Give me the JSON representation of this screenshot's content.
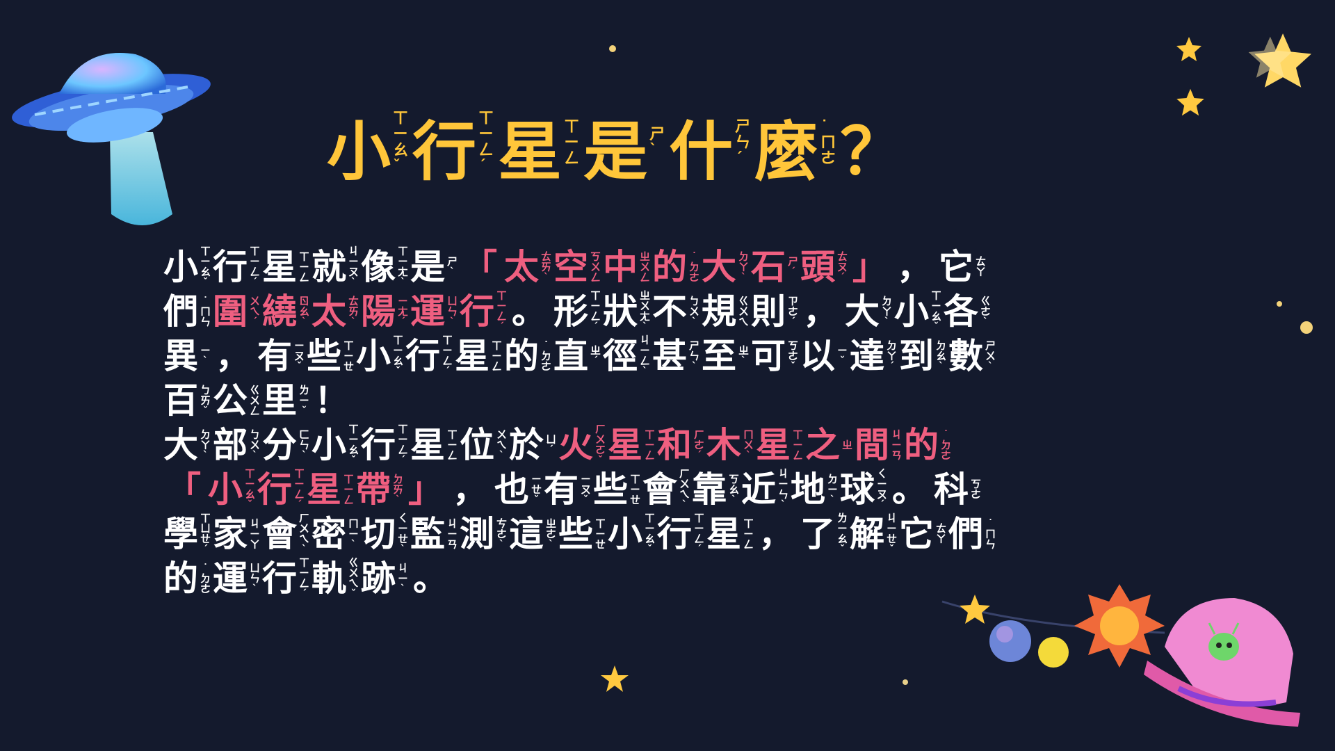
{
  "colors": {
    "background": "#141a2d",
    "title": "#ffc63a",
    "text": "#ffffff",
    "highlight": "#ef5f80",
    "star": "#ffc940"
  },
  "icons": {
    "ufo": "ufo-icon",
    "star_large": "star-icon",
    "rocket": "alien-spaceship-icon",
    "planets": "planet-chain-icon"
  },
  "title": [
    {
      "ch": "小",
      "zy": [
        "ㄒ",
        "ㄧ",
        "ㄠ",
        "ˇ"
      ]
    },
    {
      "ch": "行",
      "zy": [
        "ㄒ",
        "ㄧ",
        "ㄥ",
        "ˊ"
      ]
    },
    {
      "ch": "星",
      "zy": [
        "ㄒ",
        "ㄧ",
        "ㄥ"
      ]
    },
    {
      "ch": "是",
      "zy": [
        "ㄕ",
        "ˋ"
      ]
    },
    {
      "ch": "什",
      "zy": [
        "ㄕ",
        "ㄣ",
        "ˊ"
      ]
    },
    {
      "ch": "麼",
      "zy": [
        "˙",
        "ㄇ",
        "ㄜ"
      ]
    },
    {
      "ch": "？",
      "zy": []
    }
  ],
  "lines": [
    [
      {
        "t": "w",
        "items": [
          {
            "ch": "小",
            "zy": [
              "ㄒ",
              "ㄧ",
              "ㄠ",
              "ˇ"
            ]
          },
          {
            "ch": "行",
            "zy": [
              "ㄒ",
              "ㄧ",
              "ㄥ",
              "ˊ"
            ]
          },
          {
            "ch": "星",
            "zy": [
              "ㄒ",
              "ㄧ",
              "ㄥ"
            ]
          },
          {
            "ch": "就",
            "zy": [
              "ㄐ",
              "ㄧ",
              "ㄡ",
              "ˋ"
            ]
          },
          {
            "ch": "像",
            "zy": [
              "ㄒ",
              "ㄧ",
              "ㄤ",
              "ˋ"
            ]
          },
          {
            "ch": "是",
            "zy": [
              "ㄕ",
              "ˋ"
            ]
          }
        ]
      },
      {
        "t": "pp",
        "v": "「"
      },
      {
        "t": "p",
        "items": [
          {
            "ch": "太",
            "zy": [
              "ㄊ",
              "ㄞ",
              "ˋ"
            ]
          },
          {
            "ch": "空",
            "zy": [
              "ㄎ",
              "ㄨ",
              "ㄥ"
            ]
          },
          {
            "ch": "中",
            "zy": [
              "ㄓ",
              "ㄨ",
              "ㄥ"
            ]
          },
          {
            "ch": "的",
            "zy": [
              "˙",
              "ㄉ",
              "ㄜ"
            ]
          },
          {
            "ch": "大",
            "zy": [
              "ㄉ",
              "ㄚ",
              "ˋ"
            ]
          },
          {
            "ch": "石",
            "zy": [
              "ㄕ",
              "ˊ"
            ]
          },
          {
            "ch": "頭",
            "zy": [
              "ㄊ",
              "ㄡ",
              "ˊ"
            ]
          }
        ]
      },
      {
        "t": "pp",
        "v": "」"
      },
      {
        "t": "pw",
        "v": "，"
      },
      {
        "t": "w",
        "items": [
          {
            "ch": "它",
            "zy": [
              "ㄊ",
              "ㄚ"
            ]
          }
        ]
      }
    ],
    [
      {
        "t": "w",
        "items": [
          {
            "ch": "們",
            "zy": [
              "˙",
              "ㄇ",
              "ㄣ"
            ]
          }
        ]
      },
      {
        "t": "p",
        "items": [
          {
            "ch": "圍",
            "zy": [
              "ㄨ",
              "ㄟ",
              "ˊ"
            ]
          },
          {
            "ch": "繞",
            "zy": [
              "ㄖ",
              "ㄠ",
              "ˋ"
            ]
          },
          {
            "ch": "太",
            "zy": [
              "ㄊ",
              "ㄞ",
              "ˋ"
            ]
          },
          {
            "ch": "陽",
            "zy": [
              "ㄧ",
              "ㄤ",
              "ˊ"
            ]
          },
          {
            "ch": "運",
            "zy": [
              "ㄩ",
              "ㄣ",
              "ˋ"
            ]
          },
          {
            "ch": "行",
            "zy": [
              "ㄒ",
              "ㄧ",
              "ㄥ",
              "ˊ"
            ]
          }
        ]
      },
      {
        "t": "pw",
        "v": "。"
      },
      {
        "t": "w",
        "items": [
          {
            "ch": "形",
            "zy": [
              "ㄒ",
              "ㄧ",
              "ㄥ",
              "ˊ"
            ]
          },
          {
            "ch": "狀",
            "zy": [
              "ㄓ",
              "ㄨ",
              "ㄤ",
              "ˋ"
            ]
          },
          {
            "ch": "不",
            "zy": [
              "ㄅ",
              "ㄨ",
              "ˋ"
            ]
          },
          {
            "ch": "規",
            "zy": [
              "ㄍ",
              "ㄨ",
              "ㄟ"
            ]
          },
          {
            "ch": "則",
            "zy": [
              "ㄗ",
              "ㄜ",
              "ˊ"
            ]
          }
        ]
      },
      {
        "t": "pw",
        "v": "，"
      },
      {
        "t": "w",
        "items": [
          {
            "ch": "大",
            "zy": [
              "ㄉ",
              "ㄚ",
              "ˋ"
            ]
          },
          {
            "ch": "小",
            "zy": [
              "ㄒ",
              "ㄧ",
              "ㄠ",
              "ˇ"
            ]
          },
          {
            "ch": "各",
            "zy": [
              "ㄍ",
              "ㄜ",
              "ˋ"
            ]
          }
        ]
      }
    ],
    [
      {
        "t": "w",
        "items": [
          {
            "ch": "異",
            "zy": [
              "ㄧ",
              "ˋ"
            ]
          }
        ]
      },
      {
        "t": "pw",
        "v": "，"
      },
      {
        "t": "w",
        "items": [
          {
            "ch": "有",
            "zy": [
              "ㄧ",
              "ㄡ",
              "ˇ"
            ]
          },
          {
            "ch": "些",
            "zy": [
              "ㄒ",
              "ㄧ",
              "ㄝ"
            ]
          },
          {
            "ch": "小",
            "zy": [
              "ㄒ",
              "ㄧ",
              "ㄠ",
              "ˇ"
            ]
          },
          {
            "ch": "行",
            "zy": [
              "ㄒ",
              "ㄧ",
              "ㄥ",
              "ˊ"
            ]
          },
          {
            "ch": "星",
            "zy": [
              "ㄒ",
              "ㄧ",
              "ㄥ"
            ]
          },
          {
            "ch": "的",
            "zy": [
              "˙",
              "ㄉ",
              "ㄜ"
            ]
          },
          {
            "ch": "直",
            "zy": [
              "ㄓ",
              "ˊ"
            ]
          },
          {
            "ch": "徑",
            "zy": [
              "ㄐ",
              "ㄧ",
              "ㄥ",
              "ˋ"
            ]
          },
          {
            "ch": "甚",
            "zy": [
              "ㄕ",
              "ㄣ",
              "ˋ"
            ]
          },
          {
            "ch": "至",
            "zy": [
              "ㄓ",
              "ˋ"
            ]
          },
          {
            "ch": "可",
            "zy": [
              "ㄎ",
              "ㄜ",
              "ˇ"
            ]
          },
          {
            "ch": "以",
            "zy": [
              "ㄧ",
              "ˇ"
            ]
          },
          {
            "ch": "達",
            "zy": [
              "ㄉ",
              "ㄚ",
              "ˊ"
            ]
          },
          {
            "ch": "到",
            "zy": [
              "ㄉ",
              "ㄠ",
              "ˋ"
            ]
          },
          {
            "ch": "數",
            "zy": [
              "ㄕ",
              "ㄨ",
              "ˋ"
            ]
          }
        ]
      }
    ],
    [
      {
        "t": "w",
        "items": [
          {
            "ch": "百",
            "zy": [
              "ㄅ",
              "ㄞ",
              "ˇ"
            ]
          },
          {
            "ch": "公",
            "zy": [
              "ㄍ",
              "ㄨ",
              "ㄥ"
            ]
          },
          {
            "ch": "里",
            "zy": [
              "ㄌ",
              "ㄧ",
              "ˇ"
            ]
          }
        ]
      },
      {
        "t": "pw",
        "v": "！"
      }
    ],
    [
      {
        "t": "w",
        "items": [
          {
            "ch": "大",
            "zy": [
              "ㄉ",
              "ㄚ",
              "ˋ"
            ]
          },
          {
            "ch": "部",
            "zy": [
              "ㄅ",
              "ㄨ",
              "ˋ"
            ]
          },
          {
            "ch": "分",
            "zy": [
              "ㄈ",
              "ㄣ",
              "ˋ"
            ]
          },
          {
            "ch": "小",
            "zy": [
              "ㄒ",
              "ㄧ",
              "ㄠ",
              "ˇ"
            ]
          },
          {
            "ch": "行",
            "zy": [
              "ㄒ",
              "ㄧ",
              "ㄥ",
              "ˊ"
            ]
          },
          {
            "ch": "星",
            "zy": [
              "ㄒ",
              "ㄧ",
              "ㄥ"
            ]
          },
          {
            "ch": "位",
            "zy": [
              "ㄨ",
              "ㄟ",
              "ˋ"
            ]
          },
          {
            "ch": "於",
            "zy": [
              "ㄩ",
              "ˊ"
            ]
          }
        ]
      },
      {
        "t": "p",
        "items": [
          {
            "ch": "火",
            "zy": [
              "ㄏ",
              "ㄨ",
              "ㄛ",
              "ˇ"
            ]
          },
          {
            "ch": "星",
            "zy": [
              "ㄒ",
              "ㄧ",
              "ㄥ"
            ]
          },
          {
            "ch": "和",
            "zy": [
              "ㄏ",
              "ㄜ",
              "ˊ"
            ]
          },
          {
            "ch": "木",
            "zy": [
              "ㄇ",
              "ㄨ",
              "ˋ"
            ]
          },
          {
            "ch": "星",
            "zy": [
              "ㄒ",
              "ㄧ",
              "ㄥ"
            ]
          },
          {
            "ch": "之",
            "zy": [
              "ㄓ"
            ]
          },
          {
            "ch": "間",
            "zy": [
              "ㄐ",
              "ㄧ",
              "ㄢ"
            ]
          },
          {
            "ch": "的",
            "zy": [
              "˙",
              "ㄉ",
              "ㄜ"
            ]
          }
        ]
      }
    ],
    [
      {
        "t": "pp",
        "v": "「"
      },
      {
        "t": "p",
        "items": [
          {
            "ch": "小",
            "zy": [
              "ㄒ",
              "ㄧ",
              "ㄠ",
              "ˇ"
            ]
          },
          {
            "ch": "行",
            "zy": [
              "ㄒ",
              "ㄧ",
              "ㄥ",
              "ˊ"
            ]
          },
          {
            "ch": "星",
            "zy": [
              "ㄒ",
              "ㄧ",
              "ㄥ"
            ]
          },
          {
            "ch": "帶",
            "zy": [
              "ㄉ",
              "ㄞ",
              "ˋ"
            ]
          }
        ]
      },
      {
        "t": "pp",
        "v": "」"
      },
      {
        "t": "pw",
        "v": "，"
      },
      {
        "t": "w",
        "items": [
          {
            "ch": "也",
            "zy": [
              "ㄧ",
              "ㄝ",
              "ˇ"
            ]
          },
          {
            "ch": "有",
            "zy": [
              "ㄧ",
              "ㄡ",
              "ˇ"
            ]
          },
          {
            "ch": "些",
            "zy": [
              "ㄒ",
              "ㄧ",
              "ㄝ"
            ]
          },
          {
            "ch": "會",
            "zy": [
              "ㄏ",
              "ㄨ",
              "ㄟ",
              "ˋ"
            ]
          },
          {
            "ch": "靠",
            "zy": [
              "ㄎ",
              "ㄠ",
              "ˋ"
            ]
          },
          {
            "ch": "近",
            "zy": [
              "ㄐ",
              "ㄧ",
              "ㄣ",
              "ˋ"
            ]
          },
          {
            "ch": "地",
            "zy": [
              "ㄉ",
              "ㄧ",
              "ˋ"
            ]
          },
          {
            "ch": "球",
            "zy": [
              "ㄑ",
              "ㄧ",
              "ㄡ",
              "ˊ"
            ]
          }
        ]
      },
      {
        "t": "pw",
        "v": "。"
      },
      {
        "t": "w",
        "items": [
          {
            "ch": "科",
            "zy": [
              "ㄎ",
              "ㄜ"
            ]
          }
        ]
      }
    ],
    [
      {
        "t": "w",
        "items": [
          {
            "ch": "學",
            "zy": [
              "ㄒ",
              "ㄩ",
              "ㄝ",
              "ˊ"
            ]
          },
          {
            "ch": "家",
            "zy": [
              "ㄐ",
              "ㄧ",
              "ㄚ"
            ]
          },
          {
            "ch": "會",
            "zy": [
              "ㄏ",
              "ㄨ",
              "ㄟ",
              "ˋ"
            ]
          },
          {
            "ch": "密",
            "zy": [
              "ㄇ",
              "ㄧ",
              "ˋ"
            ]
          },
          {
            "ch": "切",
            "zy": [
              "ㄑ",
              "ㄧ",
              "ㄝ",
              "ˋ"
            ]
          },
          {
            "ch": "監",
            "zy": [
              "ㄐ",
              "ㄧ",
              "ㄢ"
            ]
          },
          {
            "ch": "測",
            "zy": [
              "ㄘ",
              "ㄜ",
              "ˋ"
            ]
          },
          {
            "ch": "這",
            "zy": [
              "ㄓ",
              "ㄜ",
              "ˋ"
            ]
          },
          {
            "ch": "些",
            "zy": [
              "ㄒ",
              "ㄧ",
              "ㄝ"
            ]
          },
          {
            "ch": "小",
            "zy": [
              "ㄒ",
              "ㄧ",
              "ㄠ",
              "ˇ"
            ]
          },
          {
            "ch": "行",
            "zy": [
              "ㄒ",
              "ㄧ",
              "ㄥ",
              "ˊ"
            ]
          },
          {
            "ch": "星",
            "zy": [
              "ㄒ",
              "ㄧ",
              "ㄥ"
            ]
          }
        ]
      },
      {
        "t": "pw",
        "v": "，"
      },
      {
        "t": "w",
        "items": [
          {
            "ch": "了",
            "zy": [
              "ㄌ",
              "ㄧ",
              "ㄠ",
              "ˇ"
            ]
          },
          {
            "ch": "解",
            "zy": [
              "ㄐ",
              "ㄧ",
              "ㄝ",
              "ˇ"
            ]
          },
          {
            "ch": "它",
            "zy": [
              "ㄊ",
              "ㄚ"
            ]
          },
          {
            "ch": "們",
            "zy": [
              "˙",
              "ㄇ",
              "ㄣ"
            ]
          }
        ]
      }
    ],
    [
      {
        "t": "w",
        "items": [
          {
            "ch": "的",
            "zy": [
              "˙",
              "ㄉ",
              "ㄜ"
            ]
          },
          {
            "ch": "運",
            "zy": [
              "ㄩ",
              "ㄣ",
              "ˋ"
            ]
          },
          {
            "ch": "行",
            "zy": [
              "ㄒ",
              "ㄧ",
              "ㄥ",
              "ˊ"
            ]
          },
          {
            "ch": "軌",
            "zy": [
              "ㄍ",
              "ㄨ",
              "ㄟ",
              "ˇ"
            ]
          },
          {
            "ch": "跡",
            "zy": [
              "ㄐ",
              "ㄧ",
              "ˋ"
            ]
          }
        ]
      },
      {
        "t": "pw",
        "v": "。"
      }
    ]
  ]
}
